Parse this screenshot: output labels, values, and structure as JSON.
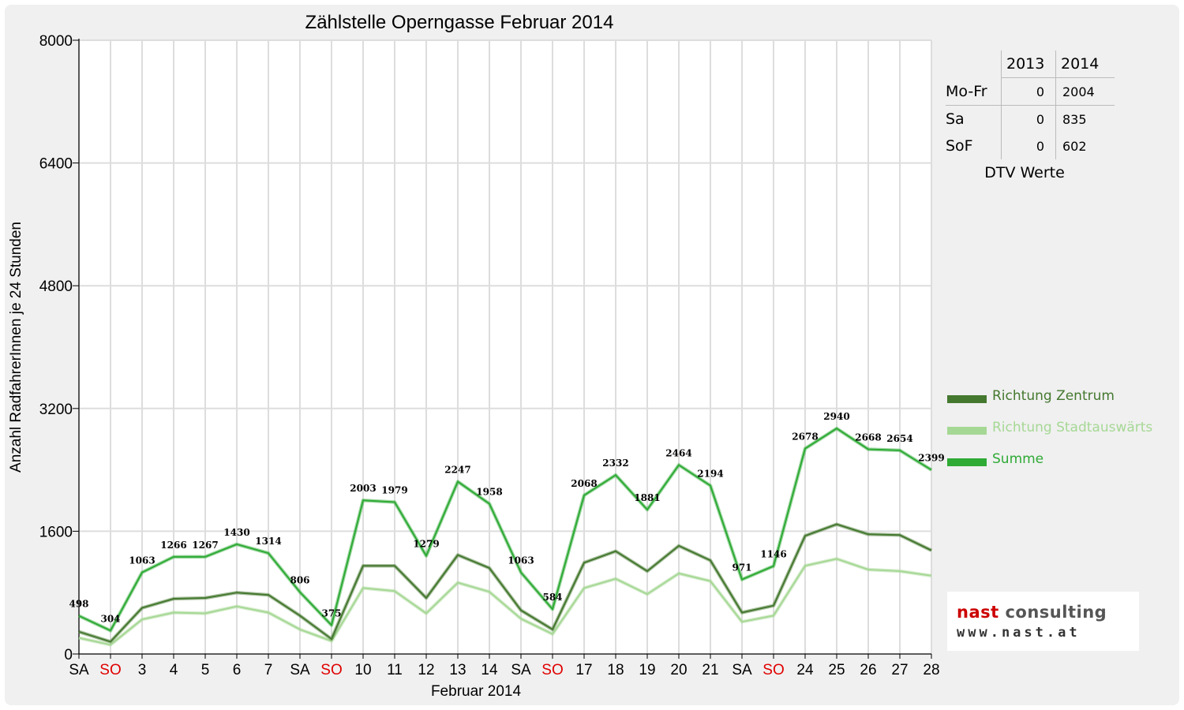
{
  "chart_data": {
    "type": "line",
    "title": "Zählstelle Operngasse Februar 2014",
    "xlabel": "Februar 2014",
    "ylabel": "Anzahl RadfahrerInnen je 24 Stunden",
    "ylim": [
      0,
      8000
    ],
    "yticks": [
      0,
      1600,
      3200,
      4800,
      6400,
      8000
    ],
    "grid": true,
    "legend_position": "right",
    "categories": [
      "SA",
      "SO",
      "3",
      "4",
      "5",
      "6",
      "7",
      "SA",
      "SO",
      "10",
      "11",
      "12",
      "13",
      "14",
      "SA",
      "SO",
      "17",
      "18",
      "19",
      "20",
      "21",
      "SA",
      "SO",
      "24",
      "25",
      "26",
      "27",
      "28"
    ],
    "weekend_indices": [
      1,
      8,
      15,
      22
    ],
    "weekend_color": "#e00000",
    "series": [
      {
        "name": "Richtung Zentrum",
        "color": "#44782f",
        "values": [
          290,
          160,
          600,
          720,
          730,
          800,
          770,
          500,
          195,
          1150,
          1150,
          730,
          1290,
          1120,
          570,
          320,
          1190,
          1340,
          1080,
          1410,
          1220,
          540,
          630,
          1540,
          1690,
          1560,
          1550,
          1350
        ]
      },
      {
        "name": "Richtung Stadtauswärts",
        "color": "#a6d895",
        "values": [
          210,
          120,
          450,
          540,
          530,
          620,
          540,
          320,
          170,
          860,
          820,
          530,
          930,
          810,
          460,
          260,
          860,
          980,
          780,
          1050,
          950,
          420,
          500,
          1150,
          1240,
          1100,
          1080,
          1020
        ]
      },
      {
        "name": "Summe",
        "color": "#2eaa35",
        "values": [
          498,
          304,
          1063,
          1266,
          1267,
          1430,
          1314,
          806,
          375,
          2003,
          1979,
          1279,
          2247,
          1958,
          1063,
          584,
          2068,
          2332,
          1881,
          2464,
          2194,
          971,
          1146,
          2678,
          2940,
          2668,
          2654,
          2399
        ],
        "labels": [
          "498",
          "304",
          "1063",
          "1266",
          "1267",
          "1430",
          "1314",
          "806",
          "375",
          "2003",
          "1979",
          "1279",
          "2247",
          "1958",
          "1063",
          "584",
          "2068",
          "2332",
          "1881",
          "2464",
          "2194",
          "971",
          "1146",
          "2678",
          "2940",
          "2668",
          "2654",
          "2399"
        ]
      }
    ]
  },
  "dtv_table": {
    "headers": [
      "2013",
      "2014"
    ],
    "rows": [
      {
        "label": "Mo-Fr",
        "v2013": "0",
        "v2014": "2004"
      },
      {
        "label": "Sa",
        "v2013": "0",
        "v2014": "835"
      },
      {
        "label": "SoF",
        "v2013": "0",
        "v2014": "602"
      }
    ],
    "caption": "DTV Werte"
  },
  "logo": {
    "name_part1": "nast",
    "name_part2": " consulting",
    "url": "www.nast.at"
  }
}
